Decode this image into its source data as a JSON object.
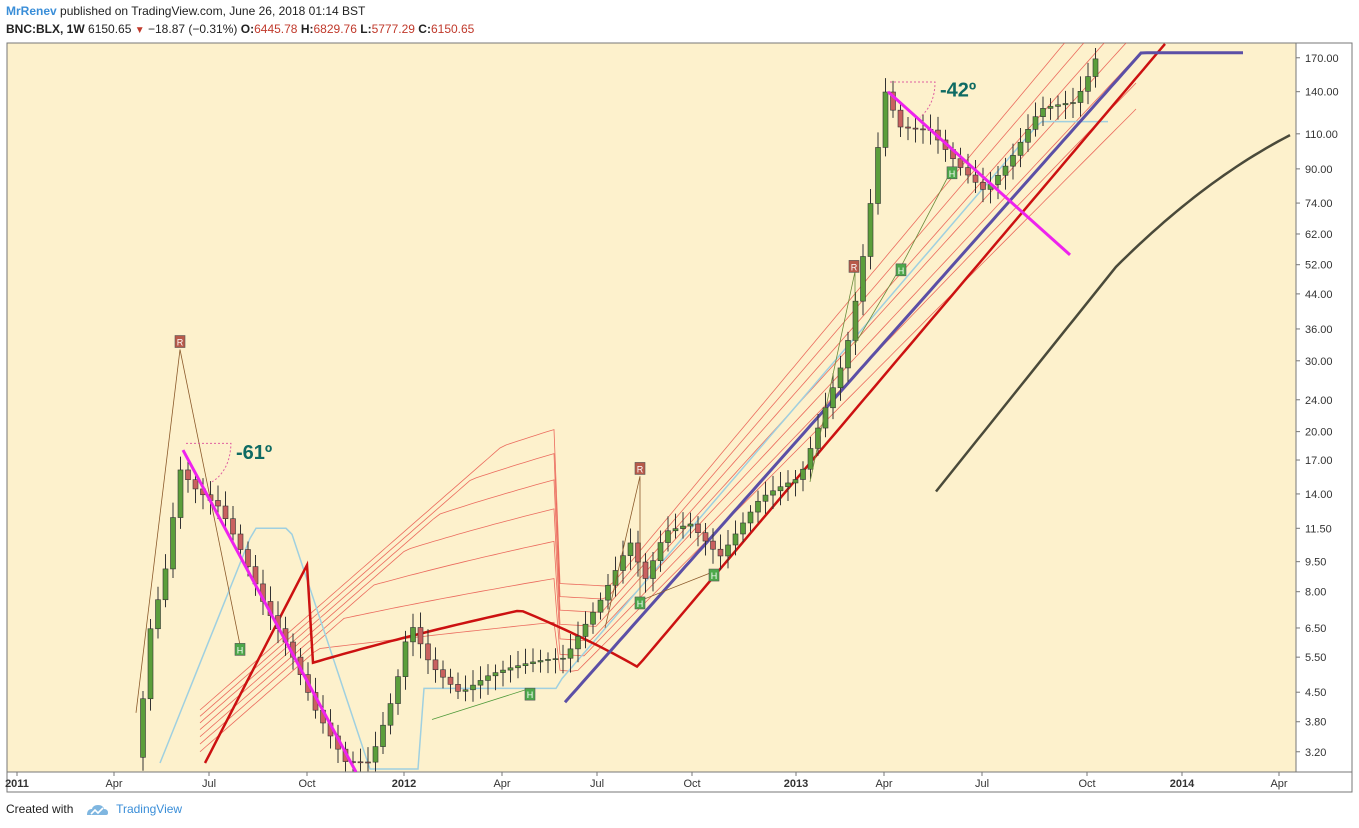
{
  "header": {
    "user": "MrRenev",
    "published": "published on TradingView.com, June 26, 2018 01:14 BST",
    "symbol": "BNC:BLX, 1W",
    "last": "6150.65",
    "change": "−18.87 (−0.31%)",
    "o_label": "O:",
    "o_value": "6445.78",
    "h_label": "H:",
    "h_value": "6829.76",
    "l_label": "L:",
    "l_value": "5777.29",
    "c_label": "C:",
    "c_value": "6150.65"
  },
  "footer": {
    "created_with": "Created with",
    "brand": "TradingView"
  },
  "colors": {
    "background": "#fdf1cc",
    "up": "#5b9e3b",
    "down": "#c9615f",
    "fan": "#e8534a",
    "ma_red": "#cc1111",
    "ma_blue": "#5b4fa6",
    "ma_dark": "#4a4a3a",
    "ma_light": "#9fd0e0",
    "trend": "#ee22ee",
    "angle_text": "#0e6b63"
  },
  "chart_data": {
    "type": "candlestick",
    "scale": "log",
    "ylim": [
      2.85,
      185
    ],
    "y_ticks": [
      3.2,
      3.8,
      4.5,
      5.5,
      6.5,
      8.0,
      9.5,
      11.5,
      14.0,
      17.0,
      20.0,
      24.0,
      30.0,
      36.0,
      44.0,
      52.0,
      62.0,
      74.0,
      90.0,
      110.0,
      140.0,
      170.0
    ],
    "x_labels": [
      "2011",
      "Apr",
      "Jul",
      "Oct",
      "2012",
      "Apr",
      "Jul",
      "Oct",
      "2013",
      "Apr",
      "Jul",
      "Oct",
      "2014",
      "Apr"
    ],
    "x_labels_bold": [
      "2011",
      "2012",
      "2013",
      "2014"
    ],
    "annotations": [
      {
        "label": "-61º"
      },
      {
        "label": "-42º"
      }
    ],
    "markers": {
      "r": "R",
      "h": "H"
    }
  }
}
